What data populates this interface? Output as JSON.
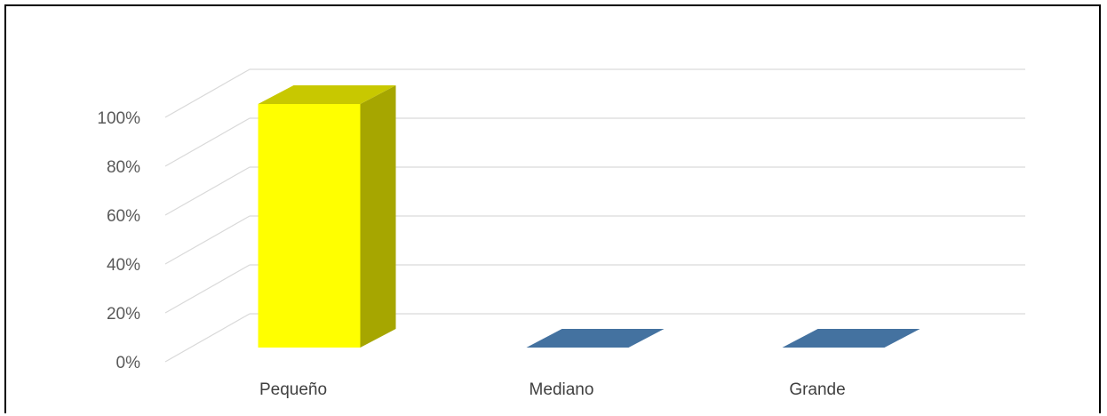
{
  "chart_data": {
    "type": "bar",
    "style": "3d-column",
    "categories": [
      "Pequeño",
      "Mediano",
      "Grande"
    ],
    "values": [
      100,
      0,
      0
    ],
    "y_tick_labels": [
      "0%",
      "20%",
      "40%",
      "60%",
      "80%",
      "100%"
    ],
    "ylim": [
      0,
      100
    ],
    "grid": true,
    "legend": "none",
    "title": "",
    "xlabel": "",
    "ylabel": "",
    "colors": {
      "highlight_bar_front": "#FFFF00",
      "highlight_bar_side": "#A6A600",
      "highlight_bar_top": "#C8C800",
      "default_bar": "#4472A0",
      "gridline": "#D9D9D9",
      "tick_text": "#595959"
    }
  }
}
